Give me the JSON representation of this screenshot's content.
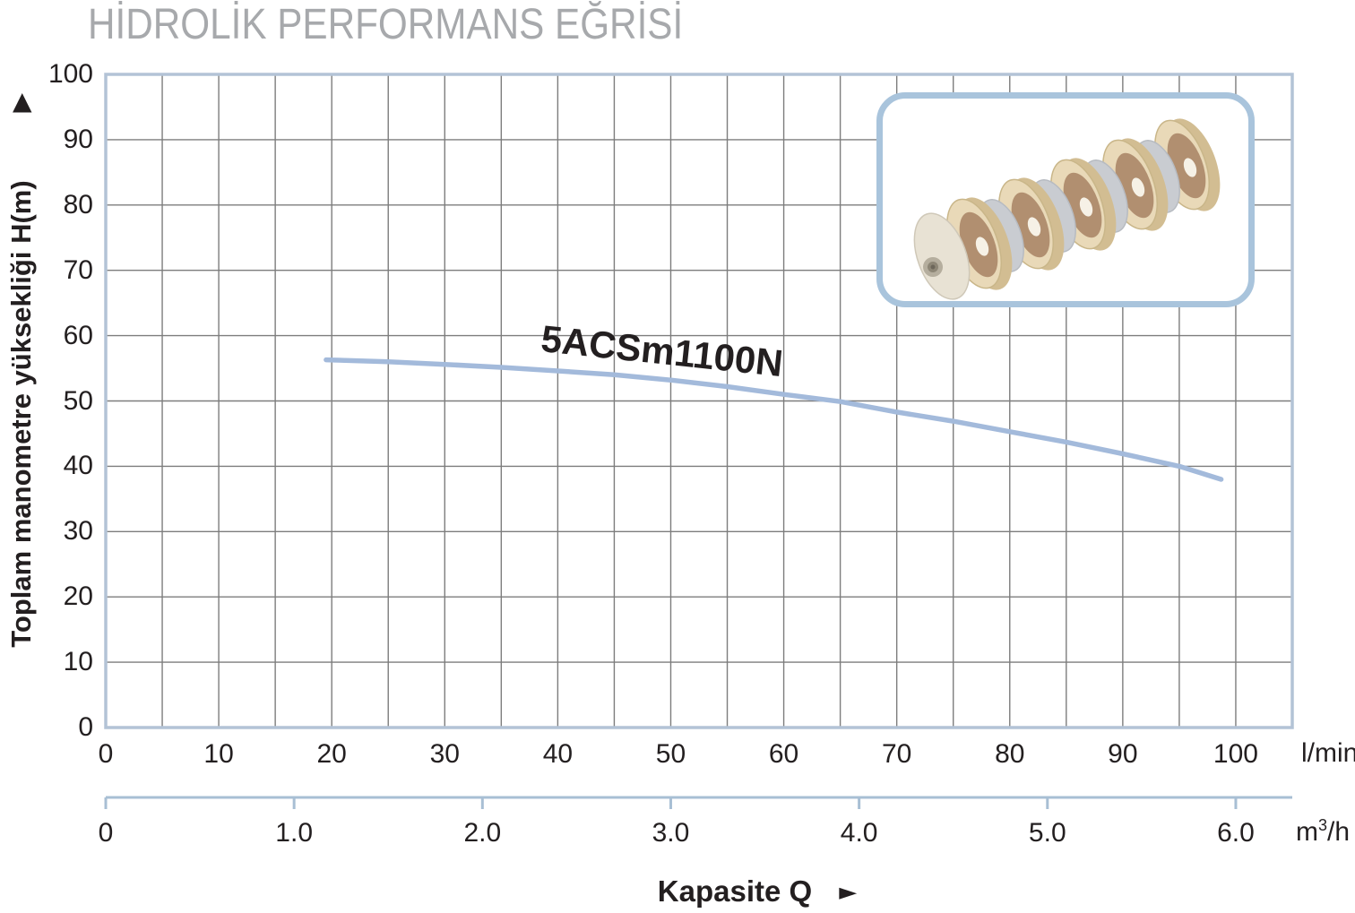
{
  "title": "HİDROLİK PERFORMANS EĞRİSİ",
  "y_axis": {
    "label": "Toplam manometre yüksekliği  H(m)",
    "arrow": "▲"
  },
  "x_axis": {
    "label": "Kapasite Q",
    "label_arrow": "►",
    "unit_primary": "l/min",
    "unit_secondary": {
      "base": "m",
      "sup": "3",
      "rest": "/h"
    }
  },
  "curve": {
    "name": "5ACSm1100N"
  },
  "chart_data": {
    "type": "line",
    "title": "HİDROLİK PERFORMANS EĞRİSİ",
    "xlabel": "Kapasite Q",
    "ylabel": "Toplam manometre yüksekliği H(m)",
    "x_unit": "l/min",
    "x2_unit": "m³/h",
    "xlim": [
      0,
      105
    ],
    "ylim": [
      0,
      100
    ],
    "grid": true,
    "x_grid_step": 5,
    "y_grid_step": 10,
    "x_ticks": [
      0,
      10,
      20,
      30,
      40,
      50,
      60,
      70,
      80,
      90,
      100
    ],
    "y_ticks": [
      0,
      10,
      20,
      30,
      40,
      50,
      60,
      70,
      80,
      90,
      100
    ],
    "x2_ticks": [
      {
        "label": "0",
        "m3h": 0
      },
      {
        "label": "1.0",
        "m3h": 1
      },
      {
        "label": "2.0",
        "m3h": 2
      },
      {
        "label": "3.0",
        "m3h": 3
      },
      {
        "label": "4.0",
        "m3h": 4
      },
      {
        "label": "5.0",
        "m3h": 5
      },
      {
        "label": "6.0",
        "m3h": 6
      }
    ],
    "lmin_per_m3h": 16.6667,
    "series": [
      {
        "name": "5ACSm1100N",
        "color": "#a3badb",
        "points": [
          [
            19.5,
            56.3
          ],
          [
            25,
            56.0
          ],
          [
            30,
            55.6
          ],
          [
            35,
            55.15
          ],
          [
            40,
            54.6
          ],
          [
            45,
            54.0
          ],
          [
            50,
            53.2
          ],
          [
            55,
            52.2
          ],
          [
            60,
            51.0
          ],
          [
            65,
            49.9
          ],
          [
            70,
            48.3
          ],
          [
            75,
            46.9
          ],
          [
            80,
            45.3
          ],
          [
            85,
            43.7
          ],
          [
            90,
            41.9
          ],
          [
            95,
            40.0
          ],
          [
            98.7,
            38.0
          ]
        ]
      }
    ],
    "colors": {
      "grid": "#7d7d7d",
      "plot_border": "#b3c3d6",
      "secondary_axis": "#a8bfd4",
      "title_gray": "#a7a9ac"
    }
  }
}
